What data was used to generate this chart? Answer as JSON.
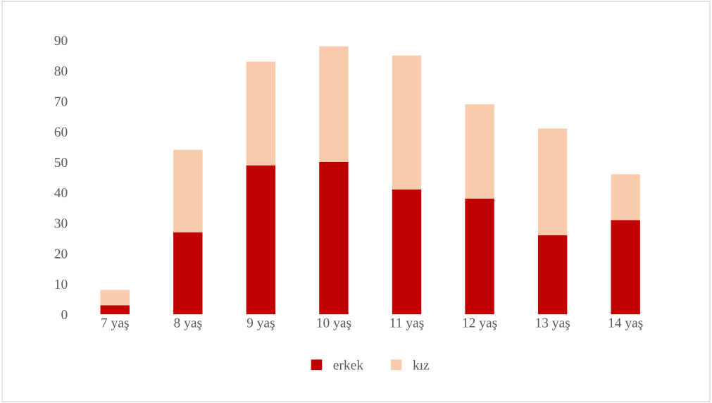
{
  "chart_data": {
    "type": "bar",
    "stacked": true,
    "categories": [
      "7 yaş",
      "8 yaş",
      "9 yaş",
      "10 yaş",
      "11 yaş",
      "12 yaş",
      "13 yaş",
      "14 yaş"
    ],
    "series": [
      {
        "name": "erkek",
        "color": "#c00000",
        "values": [
          3,
          27,
          49,
          50,
          41,
          38,
          26,
          31
        ]
      },
      {
        "name": "kız",
        "color": "#f8cbad",
        "values": [
          5,
          27,
          34,
          38,
          44,
          31,
          35,
          15
        ]
      }
    ],
    "ylim": [
      0,
      90
    ],
    "yticks": [
      0,
      10,
      20,
      30,
      40,
      50,
      60,
      70,
      80,
      90
    ],
    "grid": false,
    "legend": "bottom"
  }
}
